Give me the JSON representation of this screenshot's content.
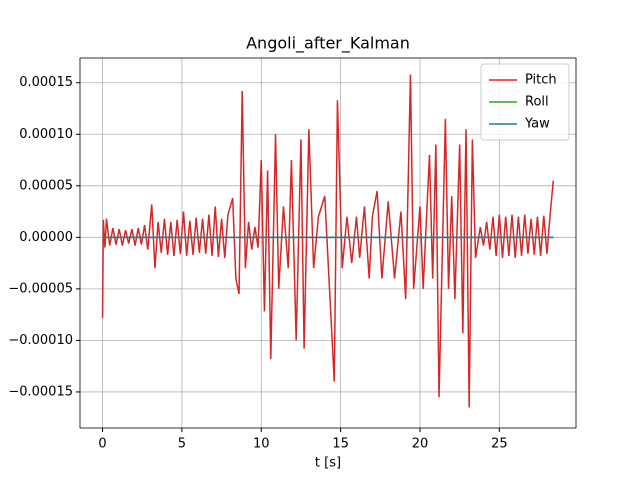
{
  "chart_data": {
    "type": "line",
    "title": "Angoli_after_Kalman",
    "xlabel": "t [s]",
    "xlim": [
      -1.42,
      29.83
    ],
    "xticks": [
      0,
      5,
      10,
      15,
      20,
      25
    ],
    "ylim": [
      -0.000185,
      0.000174
    ],
    "yticks": [
      {
        "value": 0.00015,
        "label": "0.00015"
      },
      {
        "value": 0.0001,
        "label": "0.00010"
      },
      {
        "value": 5e-05,
        "label": "0.00005"
      },
      {
        "value": 0,
        "label": "0.00000"
      },
      {
        "value": -5e-05,
        "label": "−0.00005"
      },
      {
        "value": -0.0001,
        "label": "−0.00010"
      },
      {
        "value": -0.00015,
        "label": "−0.00015"
      }
    ],
    "grid": true,
    "legend": "upper right",
    "series": [
      {
        "name": "Pitch",
        "color": "#d62728",
        "x": [
          0,
          0.05,
          0.15,
          0.25,
          0.45,
          0.65,
          0.85,
          1.05,
          1.25,
          1.45,
          1.65,
          1.85,
          2.05,
          2.25,
          2.45,
          2.65,
          2.85,
          3.1,
          3.3,
          3.5,
          3.7,
          3.9,
          4.1,
          4.3,
          4.5,
          4.7,
          4.9,
          5.1,
          5.3,
          5.5,
          5.7,
          5.9,
          6.1,
          6.3,
          6.5,
          6.7,
          6.9,
          7.1,
          7.3,
          7.5,
          7.7,
          7.9,
          8.2,
          8.4,
          8.6,
          8.8,
          9.0,
          9.2,
          9.4,
          9.6,
          9.8,
          10.0,
          10.2,
          10.4,
          10.6,
          10.9,
          11.1,
          11.4,
          11.7,
          11.9,
          12.2,
          12.5,
          12.7,
          13.0,
          13.3,
          13.6,
          14.0,
          14.3,
          14.6,
          14.8,
          15.1,
          15.4,
          15.7,
          16.0,
          16.2,
          16.5,
          16.8,
          17.0,
          17.3,
          17.6,
          18.0,
          18.4,
          18.8,
          19.1,
          19.4,
          19.6,
          20.0,
          20.2,
          20.6,
          20.8,
          21.0,
          21.2,
          21.6,
          21.8,
          22.0,
          22.2,
          22.5,
          22.7,
          22.9,
          23.1,
          23.3,
          23.5,
          23.8,
          24.0,
          24.2,
          24.4,
          24.6,
          24.8,
          25.0,
          25.2,
          25.4,
          25.6,
          25.8,
          26.0,
          26.2,
          26.4,
          26.6,
          26.8,
          27.0,
          27.2,
          27.4,
          27.6,
          27.8,
          28.0,
          28.2,
          28.4
        ],
        "values": [
          -7.8e-05,
          1.7e-05,
          -1e-05,
          1.8e-05,
          -8e-06,
          9e-06,
          -7e-06,
          8e-06,
          -8e-06,
          7e-06,
          -6e-06,
          8e-06,
          -8e-06,
          9e-06,
          -7e-06,
          1.2e-05,
          -1.2e-05,
          3.2e-05,
          -3e-05,
          1.5e-05,
          -1.5e-05,
          1.8e-05,
          -1.7e-05,
          1.5e-05,
          -1.8e-05,
          1.7e-05,
          -1.6e-05,
          2.5e-05,
          -1.8e-05,
          1.6e-05,
          -1.7e-05,
          1.9e-05,
          -1.5e-05,
          1.8e-05,
          -1.6e-05,
          2.2e-05,
          -1.8e-05,
          3e-05,
          -1.9e-05,
          1.8e-05,
          -2e-05,
          2.2e-05,
          3.8e-05,
          -4e-05,
          -5.5e-05,
          0.000142,
          -3e-05,
          1.5e-05,
          -1.2e-05,
          1e-05,
          -1e-05,
          7.5e-05,
          -7.2e-05,
          6.5e-05,
          -0.000118,
          0.0001,
          -5e-05,
          3e-05,
          -3e-05,
          7.5e-05,
          -0.0001,
          9.5e-05,
          -0.000108,
          0.000105,
          -3e-05,
          2e-05,
          4e-05,
          -5e-05,
          -0.00014,
          0.000133,
          -3e-05,
          2e-05,
          -2.5e-05,
          2e-05,
          -2e-05,
          3e-05,
          -4e-05,
          2e-05,
          4.5e-05,
          -4e-05,
          3.5e-05,
          -4e-05,
          2.5e-05,
          -6e-05,
          0.000158,
          -5e-05,
          3e-05,
          -5e-05,
          8e-05,
          -4e-05,
          9e-05,
          -0.000155,
          0.000115,
          -5e-05,
          4e-05,
          -6e-05,
          9e-05,
          -9.3e-05,
          0.000105,
          -0.000165,
          9.5e-05,
          -2e-05,
          1e-05,
          -8e-06,
          1.5e-05,
          -1.2e-05,
          2e-05,
          -1.8e-05,
          2.2e-05,
          -2e-05,
          2e-05,
          -1.8e-05,
          2.2e-05,
          -2e-05,
          2e-05,
          -1.8e-05,
          2.2e-05,
          -1.6e-05,
          1.8e-05,
          -1.7e-05,
          2e-05,
          -1.8e-05,
          2.1e-05,
          -1.6e-05,
          2.2e-05,
          5.5e-05
        ]
      },
      {
        "name": "Roll",
        "color": "#2ca02c",
        "x": [
          0,
          28.4
        ],
        "values": [
          0,
          0
        ]
      },
      {
        "name": "Yaw",
        "color": "#1f77b4",
        "x": [
          0,
          28.4
        ],
        "values": [
          0,
          0
        ]
      }
    ]
  }
}
